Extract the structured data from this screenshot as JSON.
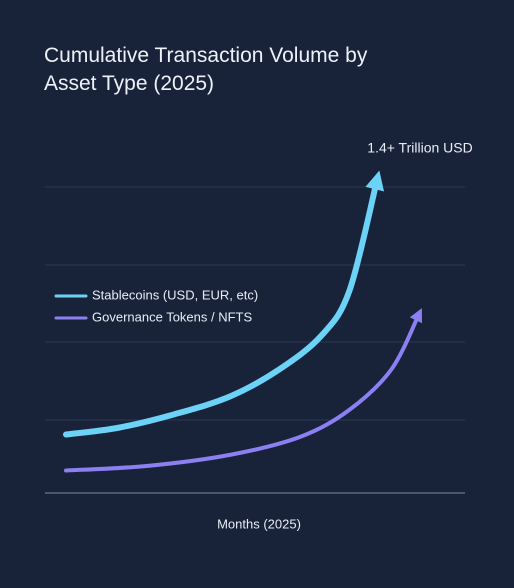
{
  "chart_data": {
    "type": "line",
    "title": "Cumulative Transaction Volume by Asset Type (2025)",
    "annotation": "1.4+ Trillion USD",
    "x_label": "Months (2025)",
    "xlim": [
      0,
      12
    ],
    "ylim": [
      0,
      1.4
    ],
    "series": [
      {
        "name": "Stablecoins (USD, EUR, etc)",
        "color": "#6cd2f6",
        "x": [
          0.6,
          2.1,
          3.7,
          5.3,
          6.7,
          7.9,
          8.7,
          9.5
        ],
        "values": [
          0.26,
          0.29,
          0.35,
          0.43,
          0.55,
          0.7,
          0.9,
          1.4
        ]
      },
      {
        "name": "Governance Tokens / NFTS",
        "color": "#8b7ff2",
        "x": [
          0.6,
          2.9,
          5.3,
          7.3,
          8.7,
          9.9,
          10.7
        ],
        "values": [
          0.1,
          0.12,
          0.17,
          0.25,
          0.37,
          0.55,
          0.8
        ]
      }
    ]
  }
}
